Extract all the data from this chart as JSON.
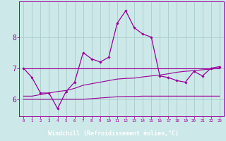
{
  "xlabel": "Windchill (Refroidissement éolien,°C)",
  "x_hours": [
    0,
    1,
    2,
    3,
    4,
    5,
    6,
    7,
    8,
    9,
    10,
    11,
    12,
    13,
    14,
    15,
    16,
    17,
    18,
    19,
    20,
    21,
    22,
    23
  ],
  "line_main_y": [
    7.0,
    6.7,
    6.2,
    6.2,
    5.7,
    6.25,
    6.55,
    7.5,
    7.3,
    7.2,
    7.35,
    8.45,
    8.85,
    8.3,
    8.1,
    8.0,
    6.75,
    6.7,
    6.6,
    6.55,
    6.9,
    6.75,
    7.0,
    7.05
  ],
  "line_flat_y": [
    7.0,
    7.0,
    7.0,
    7.0,
    7.0,
    7.0,
    7.0,
    7.0,
    7.0,
    7.0,
    7.0,
    7.0,
    7.0,
    7.0,
    7.0,
    7.0,
    7.0,
    7.0,
    7.0,
    7.0,
    7.0,
    7.0,
    7.0,
    7.0
  ],
  "line_rise1_y": [
    6.0,
    6.0,
    6.0,
    6.0,
    6.0,
    6.0,
    6.0,
    6.0,
    6.02,
    6.04,
    6.06,
    6.08,
    6.09,
    6.09,
    6.1,
    6.1,
    6.1,
    6.1,
    6.1,
    6.1,
    6.1,
    6.1,
    6.1,
    6.1
  ],
  "line_rise2_y": [
    6.1,
    6.1,
    6.15,
    6.2,
    6.25,
    6.28,
    6.35,
    6.45,
    6.5,
    6.55,
    6.6,
    6.65,
    6.67,
    6.68,
    6.72,
    6.75,
    6.78,
    6.82,
    6.87,
    6.9,
    6.92,
    6.95,
    6.97,
    7.0
  ],
  "line_color": "#990099",
  "bg_color": "#cce8e8",
  "xlabel_bg": "#9900aa",
  "grid_color": "#aacccc",
  "ylim": [
    5.45,
    9.15
  ],
  "yticks": [
    6,
    7,
    8
  ],
  "xlim": [
    -0.5,
    23.5
  ]
}
